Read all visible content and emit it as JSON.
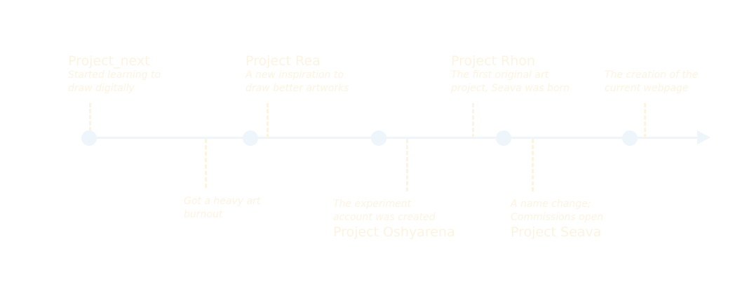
{
  "colors": {
    "line": "#eef5fb",
    "text": "#fdf3e1",
    "background": "#ffffff"
  },
  "milestones": [
    {
      "title": "Project_next",
      "desc": [
        "Started learning to",
        "draw digitally"
      ]
    },
    {
      "title": "",
      "desc": [
        "Got a heavy art",
        "burnout"
      ]
    },
    {
      "title": "Project Rea",
      "desc": [
        "A new inspiration to",
        "draw better artworks"
      ]
    },
    {
      "title": "Project Oshyarena",
      "desc": [
        "The experiment",
        "account was created"
      ]
    },
    {
      "title": "Project Rhon",
      "desc": [
        "The first original art",
        "project, Seava was born"
      ]
    },
    {
      "title": "Project Seava",
      "desc": [
        "A name change;",
        "Commissions open"
      ]
    },
    {
      "title": "",
      "desc": [
        "The creation of the",
        "current webpage"
      ]
    }
  ]
}
